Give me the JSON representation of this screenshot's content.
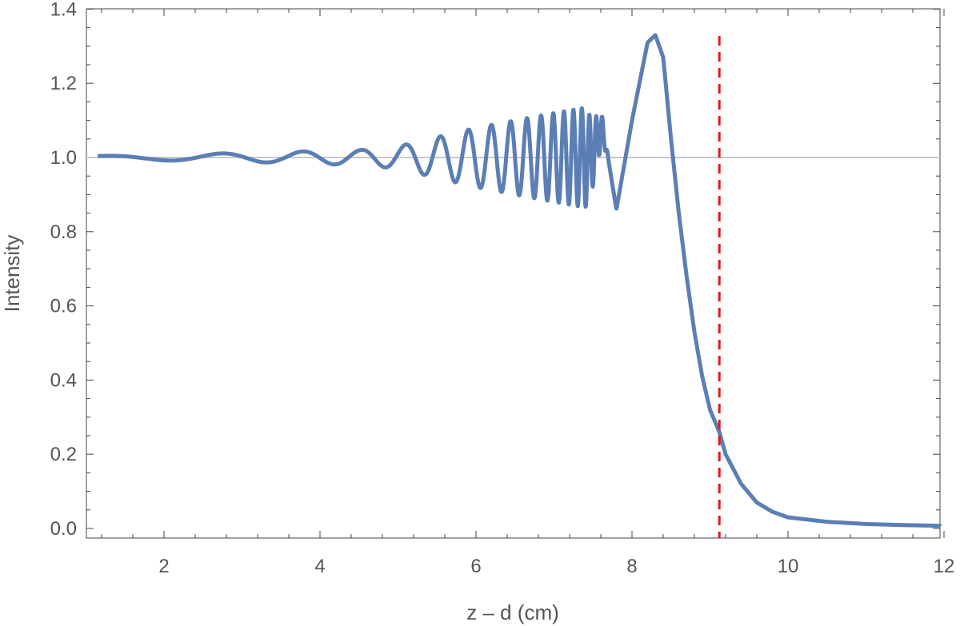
{
  "chart_data": {
    "type": "line",
    "title": "",
    "xlabel": "z – d (cm)",
    "ylabel": "Intensity",
    "xlim": [
      1.1,
      12
    ],
    "ylim": [
      -0.02,
      1.4
    ],
    "x_ticks": [
      2,
      4,
      6,
      8,
      10,
      12
    ],
    "x_tick_labels": [
      "2",
      "4",
      "6",
      "8",
      "10",
      "12"
    ],
    "y_ticks": [
      0.0,
      0.2,
      0.4,
      0.6,
      0.8,
      1.0,
      1.2,
      1.4
    ],
    "y_tick_labels": [
      "0.0",
      "0.2",
      "0.4",
      "0.6",
      "0.8",
      "1.0",
      "1.2",
      "1.4"
    ],
    "grid": false,
    "reference_line": {
      "y": 1.0,
      "color": "#c8c8c8"
    },
    "marker_line": {
      "x": 9.12,
      "color": "#e8141b",
      "style": "dashed"
    },
    "series": [
      {
        "color": "#5b7fb4",
        "x": [
          1.15,
          1.4,
          1.6,
          1.8,
          2.0,
          2.2,
          2.4,
          2.6,
          2.8,
          3.0,
          3.2,
          3.4,
          3.6,
          3.8,
          4.0,
          4.2,
          4.4,
          4.6,
          4.8,
          5.0,
          5.2,
          5.4,
          5.6,
          5.8,
          6.0,
          6.2,
          6.4,
          6.6,
          6.8,
          7.0,
          7.2,
          7.4,
          7.6,
          7.8,
          8.0,
          8.2,
          8.3,
          8.4,
          8.5,
          8.6,
          8.7,
          8.8,
          8.9,
          9.0,
          9.12,
          9.2,
          9.4,
          9.6,
          9.8,
          10.0,
          10.5,
          11.0,
          11.5,
          12.0
        ],
        "y": [
          1.0,
          1.0,
          1.0,
          1.0,
          1.0,
          1.0,
          1.0,
          1.0,
          1.0,
          1.01,
          1.0,
          1.0,
          1.0,
          1.0,
          1.0,
          1.0,
          1.0,
          1.0,
          1.0,
          1.0,
          1.0,
          1.0,
          1.0,
          1.0,
          1.0,
          1.0,
          1.0,
          1.0,
          1.0,
          1.0,
          1.0,
          0.98,
          1.12,
          0.86,
          1.1,
          1.31,
          1.33,
          1.27,
          1.05,
          0.85,
          0.68,
          0.53,
          0.41,
          0.32,
          0.26,
          0.2,
          0.12,
          0.07,
          0.045,
          0.03,
          0.018,
          0.012,
          0.009,
          0.007
        ]
      }
    ],
    "oscillation_envelope": {
      "x": [
        1.15,
        2.0,
        3.0,
        3.5,
        4.0,
        4.5,
        5.0,
        5.5,
        6.0,
        6.5,
        7.0,
        7.4,
        7.7
      ],
      "amplitude": [
        0.004,
        0.008,
        0.012,
        0.014,
        0.018,
        0.02,
        0.03,
        0.055,
        0.08,
        0.1,
        0.12,
        0.135,
        0.15
      ]
    }
  }
}
